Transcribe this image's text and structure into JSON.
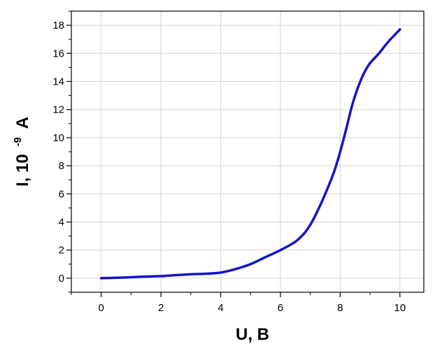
{
  "chart_data": {
    "type": "line",
    "title": "",
    "xlabel": "U, B",
    "ylabel_parts": {
      "base": "I, 10",
      "exponent": "-9",
      "unit": "A"
    },
    "xlim": [
      -1,
      10.8
    ],
    "ylim": [
      -1,
      19
    ],
    "xticks": [
      0,
      2,
      4,
      6,
      8,
      10
    ],
    "yticks": [
      0,
      2,
      4,
      6,
      8,
      10,
      12,
      14,
      16,
      18
    ],
    "grid": true,
    "series": [
      {
        "color": "#1414c8",
        "x": [
          0,
          0.5,
          1,
          1.5,
          2,
          2.5,
          3,
          3.5,
          4,
          4.5,
          5,
          5.5,
          6,
          6.5,
          6.8,
          7,
          7.2,
          7.5,
          7.8,
          8,
          8.2,
          8.4,
          8.6,
          8.8,
          9,
          9.3,
          9.6,
          10
        ],
        "y": [
          0,
          0.03,
          0.07,
          0.12,
          0.15,
          0.22,
          0.28,
          0.32,
          0.4,
          0.65,
          1.0,
          1.5,
          2.0,
          2.6,
          3.2,
          3.8,
          4.6,
          6.0,
          7.6,
          9.0,
          10.6,
          12.3,
          13.6,
          14.6,
          15.3,
          16.0,
          16.8,
          17.7
        ]
      }
    ]
  }
}
